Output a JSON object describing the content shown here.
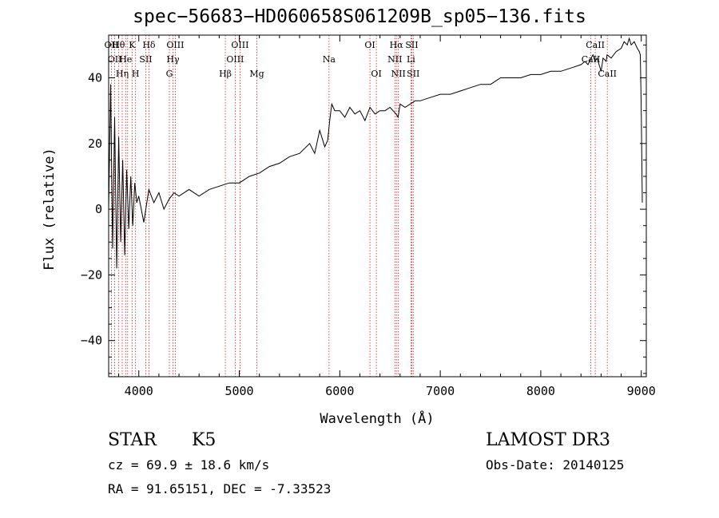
{
  "chart_data": {
    "type": "line",
    "title": "spec−56683−HD060658S061209B_sp05−136.fits",
    "xlabel": "Wavelength (Å)",
    "ylabel": "Flux (relative)",
    "xlim": [
      3700,
      9050
    ],
    "ylim": [
      -51,
      53
    ],
    "xticks": [
      4000,
      5000,
      6000,
      7000,
      8000,
      9000
    ],
    "xtick_labels": [
      "4000",
      "5000",
      "6000",
      "7000",
      "8000",
      "9000"
    ],
    "yticks": [
      -40,
      -20,
      0,
      20,
      40
    ],
    "ytick_labels": [
      "−40",
      "−20",
      "0",
      "20",
      "40"
    ],
    "series": [
      {
        "name": "spectrum",
        "x": [
          3700,
          3720,
          3740,
          3760,
          3780,
          3800,
          3820,
          3840,
          3860,
          3880,
          3900,
          3920,
          3940,
          3960,
          3980,
          4000,
          4050,
          4100,
          4150,
          4200,
          4250,
          4300,
          4350,
          4400,
          4500,
          4600,
          4700,
          4800,
          4900,
          5000,
          5100,
          5200,
          5300,
          5400,
          5500,
          5600,
          5700,
          5750,
          5800,
          5850,
          5880,
          5900,
          5920,
          5950,
          6000,
          6050,
          6100,
          6150,
          6200,
          6250,
          6300,
          6350,
          6400,
          6450,
          6500,
          6560,
          6580,
          6600,
          6650,
          6700,
          6750,
          6800,
          6900,
          7000,
          7100,
          7200,
          7300,
          7400,
          7500,
          7600,
          7700,
          7800,
          7900,
          8000,
          8100,
          8200,
          8300,
          8400,
          8440,
          8470,
          8500,
          8520,
          8540,
          8560,
          8580,
          8600,
          8620,
          8650,
          8660,
          8700,
          8750,
          8800,
          8830,
          8860,
          8880,
          8900,
          8930,
          8960,
          8980,
          8990,
          9000,
          9010
        ],
        "y": [
          0,
          38,
          -12,
          28,
          -18,
          22,
          -10,
          15,
          -14,
          12,
          -6,
          10,
          -5,
          8,
          2,
          4,
          -4,
          6,
          2,
          5,
          0,
          3,
          5,
          4,
          6,
          4,
          6,
          7,
          8,
          8,
          10,
          11,
          13,
          14,
          16,
          17,
          20,
          17,
          24,
          19,
          21,
          27,
          32,
          30,
          30,
          28,
          31,
          29,
          30,
          27,
          31,
          29,
          30,
          30,
          31,
          29,
          28,
          32,
          31,
          32,
          33,
          33,
          34,
          35,
          35,
          36,
          37,
          38,
          38,
          40,
          40,
          40,
          41,
          41,
          42,
          42,
          43,
          44,
          45,
          44,
          46,
          47,
          45,
          46,
          44,
          42,
          46,
          45,
          47,
          46,
          48,
          49,
          51,
          50,
          52,
          50,
          51,
          49,
          48,
          47,
          30,
          2
        ]
      }
    ],
    "lines": [
      {
        "wave": 3727,
        "top": "OII",
        "mid": "",
        "bot": ""
      },
      {
        "wave": 3760,
        "top": "",
        "mid": "OII",
        "bot": ""
      },
      {
        "wave": 3798,
        "top": "Hθ",
        "mid": "",
        "bot": ""
      },
      {
        "wave": 3835,
        "top": "",
        "mid": "",
        "bot": "Hη"
      },
      {
        "wave": 3869,
        "top": "",
        "mid": "He",
        "bot": ""
      },
      {
        "wave": 3889,
        "top": "",
        "mid": "",
        "bot": ""
      },
      {
        "wave": 3933,
        "top": "K",
        "mid": "",
        "bot": ""
      },
      {
        "wave": 3968,
        "top": "",
        "mid": "",
        "bot": "H"
      },
      {
        "wave": 4070,
        "top": "",
        "mid": "SII",
        "bot": ""
      },
      {
        "wave": 4101,
        "top": "Hδ",
        "mid": "",
        "bot": ""
      },
      {
        "wave": 4304,
        "top": "",
        "mid": "",
        "bot": "G"
      },
      {
        "wave": 4340,
        "top": "",
        "mid": "Hγ",
        "bot": ""
      },
      {
        "wave": 4363,
        "top": "OIII",
        "mid": "",
        "bot": ""
      },
      {
        "wave": 4861,
        "top": "",
        "mid": "",
        "bot": "Hβ"
      },
      {
        "wave": 4959,
        "top": "",
        "mid": "OIII",
        "bot": ""
      },
      {
        "wave": 5007,
        "top": "OIII",
        "mid": "",
        "bot": ""
      },
      {
        "wave": 5175,
        "top": "",
        "mid": "",
        "bot": "Mg"
      },
      {
        "wave": 5893,
        "top": "",
        "mid": "Na",
        "bot": ""
      },
      {
        "wave": 6300,
        "top": "OI",
        "mid": "",
        "bot": ""
      },
      {
        "wave": 6364,
        "top": "",
        "mid": "",
        "bot": "OI"
      },
      {
        "wave": 6548,
        "top": "",
        "mid": "NII",
        "bot": ""
      },
      {
        "wave": 6563,
        "top": "Hα",
        "mid": "",
        "bot": ""
      },
      {
        "wave": 6583,
        "top": "",
        "mid": "",
        "bot": "NII"
      },
      {
        "wave": 6708,
        "top": "",
        "mid": "Li",
        "bot": ""
      },
      {
        "wave": 6717,
        "top": "SII",
        "mid": "",
        "bot": ""
      },
      {
        "wave": 6731,
        "top": "",
        "mid": "",
        "bot": "SII"
      },
      {
        "wave": 8498,
        "top": "",
        "mid": "CaII",
        "bot": ""
      },
      {
        "wave": 8542,
        "top": "CaII",
        "mid": "",
        "bot": ""
      },
      {
        "wave": 8662,
        "top": "",
        "mid": "",
        "bot": "CaII"
      }
    ]
  },
  "info": {
    "class_label": "STAR",
    "subclass": "K5",
    "survey": "LAMOST DR3",
    "cz": "cz = 69.9 ± 18.6 km/s",
    "obs_date": "Obs-Date: 20140125",
    "coords": "RA =  91.65151, DEC =  -7.33523"
  }
}
